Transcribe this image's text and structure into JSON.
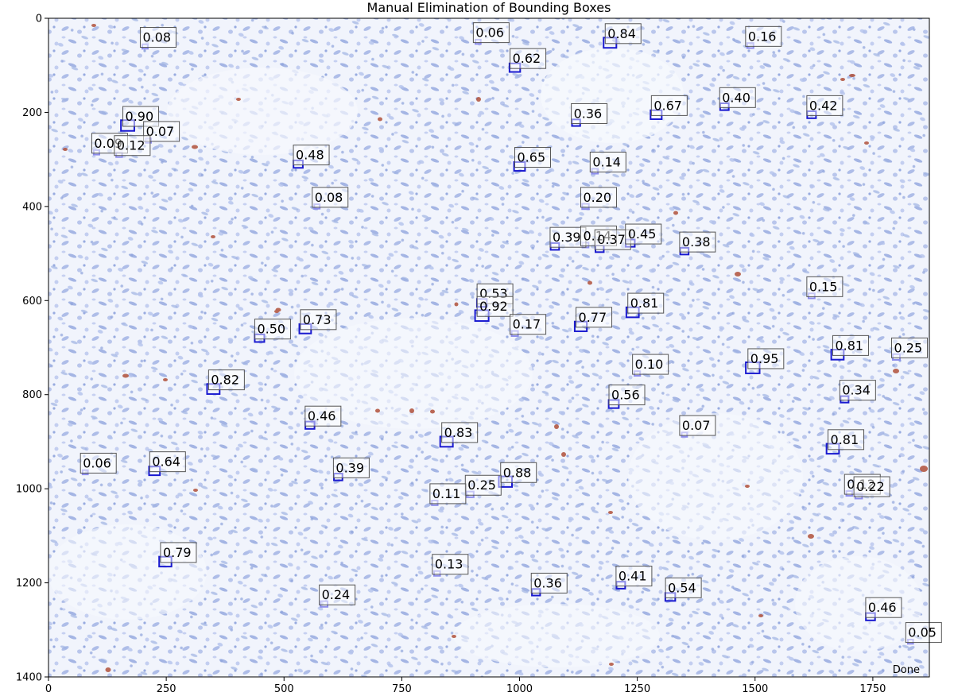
{
  "figure": {
    "title": "Manual Elimination of Bounding Boxes",
    "status_text": "Done"
  },
  "colors": {
    "background_tissue": "#f1f4fc",
    "nuclei_blue": "#a9b9e6",
    "stain_brown": "#b0503a",
    "box_strong": "#1a1ad0",
    "box_weak": "#8c8cec",
    "label_border": "#555555"
  },
  "chart_data": {
    "type": "scatter",
    "title": "Manual Elimination of Bounding Boxes",
    "xlabel": "",
    "ylabel": "",
    "xlim": [
      0,
      1870
    ],
    "ylim": [
      1400,
      0
    ],
    "xticks": [
      0,
      250,
      500,
      750,
      1000,
      1250,
      1500,
      1750
    ],
    "yticks": [
      0,
      200,
      400,
      600,
      800,
      1000,
      1200,
      1400
    ],
    "grid": false,
    "boxes": [
      {
        "x": 205,
        "y": 60,
        "score": "0.08"
      },
      {
        "x": 912,
        "y": 50,
        "score": "0.06"
      },
      {
        "x": 1192,
        "y": 52,
        "score": "0.84"
      },
      {
        "x": 1490,
        "y": 58,
        "score": "0.16"
      },
      {
        "x": 990,
        "y": 105,
        "score": "0.62"
      },
      {
        "x": 1435,
        "y": 188,
        "score": "0.40"
      },
      {
        "x": 1290,
        "y": 205,
        "score": "0.67"
      },
      {
        "x": 1620,
        "y": 205,
        "score": "0.42"
      },
      {
        "x": 1120,
        "y": 222,
        "score": "0.36"
      },
      {
        "x": 168,
        "y": 228,
        "score": "0.90"
      },
      {
        "x": 212,
        "y": 260,
        "score": "0.07"
      },
      {
        "x": 102,
        "y": 285,
        "score": "0.09"
      },
      {
        "x": 150,
        "y": 290,
        "score": "0.12"
      },
      {
        "x": 530,
        "y": 310,
        "score": "0.48"
      },
      {
        "x": 1000,
        "y": 315,
        "score": "0.65"
      },
      {
        "x": 1160,
        "y": 325,
        "score": "0.14"
      },
      {
        "x": 570,
        "y": 400,
        "score": "0.08"
      },
      {
        "x": 1140,
        "y": 400,
        "score": "0.20"
      },
      {
        "x": 1075,
        "y": 485,
        "score": "0.39"
      },
      {
        "x": 1140,
        "y": 482,
        "score": "0.14"
      },
      {
        "x": 1170,
        "y": 490,
        "score": "0.37"
      },
      {
        "x": 1235,
        "y": 478,
        "score": "0.45"
      },
      {
        "x": 1350,
        "y": 495,
        "score": "0.38"
      },
      {
        "x": 1620,
        "y": 590,
        "score": "0.15"
      },
      {
        "x": 920,
        "y": 605,
        "score": "0.53"
      },
      {
        "x": 920,
        "y": 632,
        "score": "0.92"
      },
      {
        "x": 1240,
        "y": 625,
        "score": "0.81"
      },
      {
        "x": 1130,
        "y": 655,
        "score": "0.77"
      },
      {
        "x": 990,
        "y": 670,
        "score": "0.17"
      },
      {
        "x": 545,
        "y": 660,
        "score": "0.73"
      },
      {
        "x": 448,
        "y": 680,
        "score": "0.50"
      },
      {
        "x": 1675,
        "y": 715,
        "score": "0.81"
      },
      {
        "x": 1800,
        "y": 720,
        "score": "0.25"
      },
      {
        "x": 1495,
        "y": 743,
        "score": "0.95"
      },
      {
        "x": 1250,
        "y": 755,
        "score": "0.10"
      },
      {
        "x": 350,
        "y": 788,
        "score": "0.82"
      },
      {
        "x": 1690,
        "y": 810,
        "score": "0.34"
      },
      {
        "x": 1200,
        "y": 820,
        "score": "0.56"
      },
      {
        "x": 555,
        "y": 865,
        "score": "0.46"
      },
      {
        "x": 1350,
        "y": 885,
        "score": "0.07"
      },
      {
        "x": 845,
        "y": 900,
        "score": "0.83"
      },
      {
        "x": 1665,
        "y": 915,
        "score": "0.81"
      },
      {
        "x": 78,
        "y": 965,
        "score": "0.06"
      },
      {
        "x": 225,
        "y": 962,
        "score": "0.64"
      },
      {
        "x": 615,
        "y": 975,
        "score": "0.39"
      },
      {
        "x": 970,
        "y": 985,
        "score": "0.88"
      },
      {
        "x": 895,
        "y": 1012,
        "score": "0.25"
      },
      {
        "x": 1700,
        "y": 1010,
        "score": "0.12"
      },
      {
        "x": 1720,
        "y": 1015,
        "score": "0.22"
      },
      {
        "x": 820,
        "y": 1030,
        "score": "0.11"
      },
      {
        "x": 248,
        "y": 1155,
        "score": "0.79"
      },
      {
        "x": 825,
        "y": 1180,
        "score": "0.13"
      },
      {
        "x": 1215,
        "y": 1205,
        "score": "0.41"
      },
      {
        "x": 1035,
        "y": 1220,
        "score": "0.36"
      },
      {
        "x": 1320,
        "y": 1230,
        "score": "0.54"
      },
      {
        "x": 585,
        "y": 1245,
        "score": "0.24"
      },
      {
        "x": 1745,
        "y": 1272,
        "score": "0.46"
      },
      {
        "x": 1830,
        "y": 1325,
        "score": "0.05"
      }
    ]
  }
}
